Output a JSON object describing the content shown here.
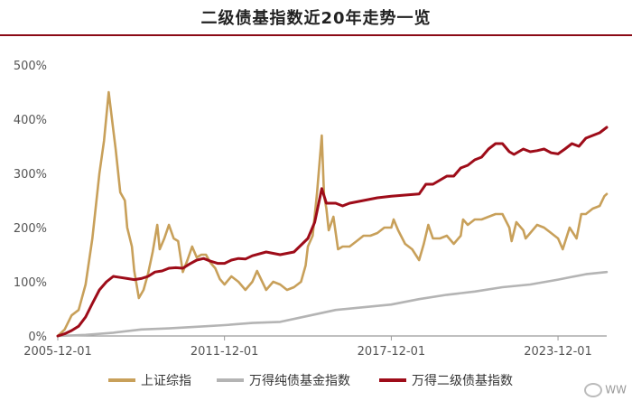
{
  "chart_data": {
    "type": "line",
    "title": "二级债基指数近20年走势一览",
    "xlabel": "",
    "ylabel": "",
    "x_tick_labels": [
      "2005-12-01",
      "2011-12-01",
      "2017-12-01",
      "2023-12-01"
    ],
    "x_range": [
      "2005-12-01",
      "2025-09-01"
    ],
    "y_tick_labels": [
      "0%",
      "100%",
      "200%",
      "300%",
      "400%",
      "500%"
    ],
    "y_unit": "%",
    "ylim": [
      0,
      500
    ],
    "grid": false,
    "legend_position": "bottom",
    "series": [
      {
        "name": "上证综指",
        "color": "#c8a05a",
        "data": [
          [
            "2005-12-01",
            0
          ],
          [
            "2006-03-01",
            12
          ],
          [
            "2006-06-01",
            38
          ],
          [
            "2006-09-01",
            48
          ],
          [
            "2006-12-01",
            95
          ],
          [
            "2007-03-01",
            180
          ],
          [
            "2007-06-01",
            300
          ],
          [
            "2007-08-01",
            360
          ],
          [
            "2007-10-01",
            450
          ],
          [
            "2007-12-01",
            380
          ],
          [
            "2008-01-01",
            345
          ],
          [
            "2008-03-01",
            265
          ],
          [
            "2008-05-01",
            250
          ],
          [
            "2008-06-01",
            200
          ],
          [
            "2008-08-01",
            165
          ],
          [
            "2008-09-01",
            120
          ],
          [
            "2008-11-01",
            70
          ],
          [
            "2009-01-01",
            85
          ],
          [
            "2009-03-01",
            115
          ],
          [
            "2009-05-01",
            155
          ],
          [
            "2009-07-01",
            205
          ],
          [
            "2009-08-01",
            160
          ],
          [
            "2009-10-01",
            180
          ],
          [
            "2009-12-01",
            205
          ],
          [
            "2010-02-01",
            180
          ],
          [
            "2010-04-01",
            175
          ],
          [
            "2010-06-01",
            118
          ],
          [
            "2010-08-01",
            140
          ],
          [
            "2010-10-01",
            165
          ],
          [
            "2010-12-01",
            145
          ],
          [
            "2011-02-01",
            150
          ],
          [
            "2011-04-01",
            150
          ],
          [
            "2011-06-01",
            135
          ],
          [
            "2011-08-01",
            125
          ],
          [
            "2011-10-01",
            105
          ],
          [
            "2011-12-01",
            95
          ],
          [
            "2012-03-01",
            110
          ],
          [
            "2012-06-01",
            100
          ],
          [
            "2012-09-01",
            85
          ],
          [
            "2012-12-01",
            100
          ],
          [
            "2013-02-01",
            120
          ],
          [
            "2013-06-01",
            85
          ],
          [
            "2013-09-01",
            100
          ],
          [
            "2013-12-01",
            95
          ],
          [
            "2014-03-01",
            85
          ],
          [
            "2014-06-01",
            90
          ],
          [
            "2014-09-01",
            100
          ],
          [
            "2014-11-01",
            130
          ],
          [
            "2014-12-01",
            165
          ],
          [
            "2015-02-01",
            185
          ],
          [
            "2015-04-01",
            265
          ],
          [
            "2015-06-01",
            370
          ],
          [
            "2015-07-01",
            260
          ],
          [
            "2015-08-01",
            235
          ],
          [
            "2015-09-01",
            195
          ],
          [
            "2015-11-01",
            220
          ],
          [
            "2016-01-01",
            160
          ],
          [
            "2016-03-01",
            165
          ],
          [
            "2016-06-01",
            165
          ],
          [
            "2016-09-01",
            175
          ],
          [
            "2016-12-01",
            185
          ],
          [
            "2017-03-01",
            185
          ],
          [
            "2017-06-01",
            190
          ],
          [
            "2017-09-01",
            200
          ],
          [
            "2017-12-01",
            200
          ],
          [
            "2018-01-01",
            215
          ],
          [
            "2018-03-01",
            195
          ],
          [
            "2018-06-01",
            170
          ],
          [
            "2018-09-01",
            160
          ],
          [
            "2018-12-01",
            140
          ],
          [
            "2019-02-01",
            170
          ],
          [
            "2019-04-01",
            205
          ],
          [
            "2019-06-01",
            180
          ],
          [
            "2019-09-01",
            180
          ],
          [
            "2019-12-01",
            185
          ],
          [
            "2020-03-01",
            170
          ],
          [
            "2020-06-01",
            185
          ],
          [
            "2020-07-01",
            215
          ],
          [
            "2020-09-01",
            205
          ],
          [
            "2020-12-01",
            215
          ],
          [
            "2021-03-01",
            215
          ],
          [
            "2021-06-01",
            220
          ],
          [
            "2021-09-01",
            225
          ],
          [
            "2021-12-01",
            225
          ],
          [
            "2022-03-01",
            200
          ],
          [
            "2022-04-01",
            175
          ],
          [
            "2022-06-01",
            210
          ],
          [
            "2022-09-01",
            195
          ],
          [
            "2022-10-01",
            180
          ],
          [
            "2022-12-01",
            190
          ],
          [
            "2023-03-01",
            205
          ],
          [
            "2023-06-01",
            200
          ],
          [
            "2023-09-01",
            190
          ],
          [
            "2023-12-01",
            180
          ],
          [
            "2024-02-01",
            160
          ],
          [
            "2024-05-01",
            200
          ],
          [
            "2024-08-01",
            180
          ],
          [
            "2024-10-01",
            225
          ],
          [
            "2024-12-01",
            225
          ],
          [
            "2025-03-01",
            235
          ],
          [
            "2025-06-01",
            240
          ],
          [
            "2025-08-01",
            258
          ],
          [
            "2025-09-01",
            262
          ]
        ]
      },
      {
        "name": "万得纯债基金指数",
        "color": "#b4b4b4",
        "data": [
          [
            "2005-12-01",
            0
          ],
          [
            "2006-12-01",
            2
          ],
          [
            "2007-12-01",
            6
          ],
          [
            "2008-12-01",
            12
          ],
          [
            "2009-12-01",
            14
          ],
          [
            "2010-12-01",
            17
          ],
          [
            "2011-12-01",
            20
          ],
          [
            "2012-12-01",
            24
          ],
          [
            "2013-12-01",
            26
          ],
          [
            "2014-12-01",
            37
          ],
          [
            "2015-12-01",
            48
          ],
          [
            "2016-12-01",
            53
          ],
          [
            "2017-12-01",
            58
          ],
          [
            "2018-12-01",
            68
          ],
          [
            "2019-12-01",
            76
          ],
          [
            "2020-12-01",
            82
          ],
          [
            "2021-12-01",
            90
          ],
          [
            "2022-12-01",
            95
          ],
          [
            "2023-12-01",
            104
          ],
          [
            "2024-12-01",
            114
          ],
          [
            "2025-09-01",
            118
          ]
        ]
      },
      {
        "name": "万得二级债基指数",
        "color": "#9e0c19",
        "data": [
          [
            "2005-12-01",
            0
          ],
          [
            "2006-03-01",
            4
          ],
          [
            "2006-06-01",
            10
          ],
          [
            "2006-09-01",
            18
          ],
          [
            "2006-12-01",
            35
          ],
          [
            "2007-03-01",
            60
          ],
          [
            "2007-06-01",
            85
          ],
          [
            "2007-09-01",
            100
          ],
          [
            "2007-12-01",
            110
          ],
          [
            "2008-03-01",
            108
          ],
          [
            "2008-06-01",
            106
          ],
          [
            "2008-09-01",
            104
          ],
          [
            "2008-12-01",
            106
          ],
          [
            "2009-03-01",
            110
          ],
          [
            "2009-06-01",
            118
          ],
          [
            "2009-09-01",
            120
          ],
          [
            "2009-12-01",
            125
          ],
          [
            "2010-03-01",
            126
          ],
          [
            "2010-06-01",
            125
          ],
          [
            "2010-09-01",
            133
          ],
          [
            "2010-12-01",
            140
          ],
          [
            "2011-03-01",
            143
          ],
          [
            "2011-06-01",
            138
          ],
          [
            "2011-09-01",
            134
          ],
          [
            "2011-12-01",
            134
          ],
          [
            "2012-03-01",
            140
          ],
          [
            "2012-06-01",
            143
          ],
          [
            "2012-09-01",
            142
          ],
          [
            "2012-12-01",
            148
          ],
          [
            "2013-06-01",
            155
          ],
          [
            "2013-12-01",
            150
          ],
          [
            "2014-06-01",
            155
          ],
          [
            "2014-12-01",
            180
          ],
          [
            "2015-03-01",
            210
          ],
          [
            "2015-06-01",
            272
          ],
          [
            "2015-08-01",
            245
          ],
          [
            "2015-12-01",
            245
          ],
          [
            "2016-03-01",
            240
          ],
          [
            "2016-06-01",
            245
          ],
          [
            "2016-12-01",
            250
          ],
          [
            "2017-06-01",
            255
          ],
          [
            "2017-12-01",
            258
          ],
          [
            "2018-06-01",
            260
          ],
          [
            "2018-12-01",
            262
          ],
          [
            "2019-03-01",
            280
          ],
          [
            "2019-06-01",
            280
          ],
          [
            "2019-12-01",
            295
          ],
          [
            "2020-03-01",
            295
          ],
          [
            "2020-06-01",
            310
          ],
          [
            "2020-09-01",
            315
          ],
          [
            "2020-12-01",
            325
          ],
          [
            "2021-03-01",
            330
          ],
          [
            "2021-06-01",
            345
          ],
          [
            "2021-09-01",
            355
          ],
          [
            "2021-12-01",
            355
          ],
          [
            "2022-03-01",
            340
          ],
          [
            "2022-05-01",
            335
          ],
          [
            "2022-09-01",
            345
          ],
          [
            "2022-12-01",
            340
          ],
          [
            "2023-03-01",
            342
          ],
          [
            "2023-06-01",
            345
          ],
          [
            "2023-09-01",
            338
          ],
          [
            "2023-12-01",
            336
          ],
          [
            "2024-03-01",
            345
          ],
          [
            "2024-06-01",
            355
          ],
          [
            "2024-09-01",
            350
          ],
          [
            "2024-12-01",
            365
          ],
          [
            "2025-03-01",
            370
          ],
          [
            "2025-06-01",
            375
          ],
          [
            "2025-09-01",
            385
          ]
        ]
      }
    ]
  },
  "watermark": "WW"
}
